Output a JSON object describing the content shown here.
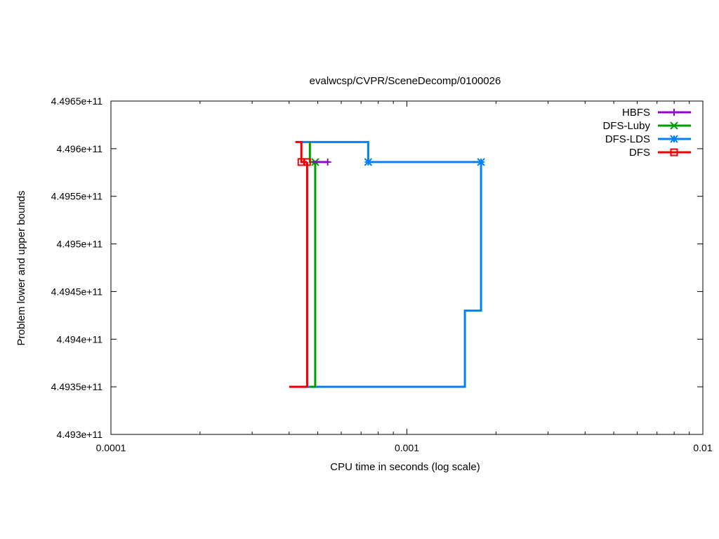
{
  "chart_data": {
    "type": "line",
    "title": "evalwcsp/CVPR/SceneDecomp/0100026",
    "xlabel": "CPU time in seconds (log scale)",
    "ylabel": "Problem lower and upper bounds",
    "x_scale": "log",
    "xlim": [
      0.0001,
      0.01
    ],
    "ylim": [
      449300000000,
      449650000000
    ],
    "x_ticks": [
      0.0001,
      0.001,
      0.01
    ],
    "x_tick_labels": [
      "0.0001",
      "0.001",
      "0.01"
    ],
    "y_ticks": [
      449300000000,
      449350000000,
      449400000000,
      449450000000,
      449500000000,
      449550000000,
      449600000000,
      449650000000
    ],
    "y_tick_labels": [
      "4.493e+11",
      "4.4935e+11",
      "4.494e+11",
      "4.4945e+11",
      "4.495e+11",
      "4.4955e+11",
      "4.496e+11",
      "4.4965e+11"
    ],
    "grid": false,
    "legend_position": "top-right",
    "series": [
      {
        "name": "HBFS",
        "color": "#9400d3",
        "marker": "plus",
        "upper": [
          [
            0.00048,
            449586000000
          ],
          [
            0.00054,
            449586000000
          ]
        ],
        "markers": [
          [
            0.00054,
            449586000000
          ]
        ]
      },
      {
        "name": "DFS-Luby",
        "color": "#009e00",
        "marker": "cross",
        "upper": [
          [
            0.00047,
            449607000000
          ],
          [
            0.00047,
            449586000000
          ],
          [
            0.00049,
            449586000000
          ]
        ],
        "lower": [
          [
            0.00047,
            449350000000
          ],
          [
            0.00049,
            449350000000
          ],
          [
            0.00049,
            449586000000
          ]
        ],
        "markers": [
          [
            0.00049,
            449586000000
          ]
        ]
      },
      {
        "name": "DFS-LDS",
        "color": "#0080ff",
        "marker": "asterisk",
        "upper": [
          [
            0.00044,
            449607000000
          ],
          [
            0.00074,
            449607000000
          ],
          [
            0.00074,
            449586000000
          ],
          [
            0.00178,
            449586000000
          ]
        ],
        "lower": [
          [
            0.00044,
            449350000000
          ],
          [
            0.00157,
            449350000000
          ],
          [
            0.00157,
            449430000000
          ],
          [
            0.00178,
            449430000000
          ],
          [
            0.00178,
            449586000000
          ]
        ],
        "markers": [
          [
            0.00074,
            449586000000
          ],
          [
            0.00178,
            449586000000
          ]
        ]
      },
      {
        "name": "DFS",
        "color": "#ee0000",
        "marker": "square",
        "upper": [
          [
            0.00042,
            449607000000
          ],
          [
            0.00044,
            449607000000
          ],
          [
            0.00044,
            449586000000
          ],
          [
            0.00046,
            449586000000
          ]
        ],
        "lower": [
          [
            0.0004,
            449350000000
          ],
          [
            0.00046,
            449350000000
          ],
          [
            0.00046,
            449586000000
          ]
        ],
        "markers": [
          [
            0.00044,
            449586000000
          ],
          [
            0.00046,
            449586000000
          ]
        ]
      }
    ]
  }
}
